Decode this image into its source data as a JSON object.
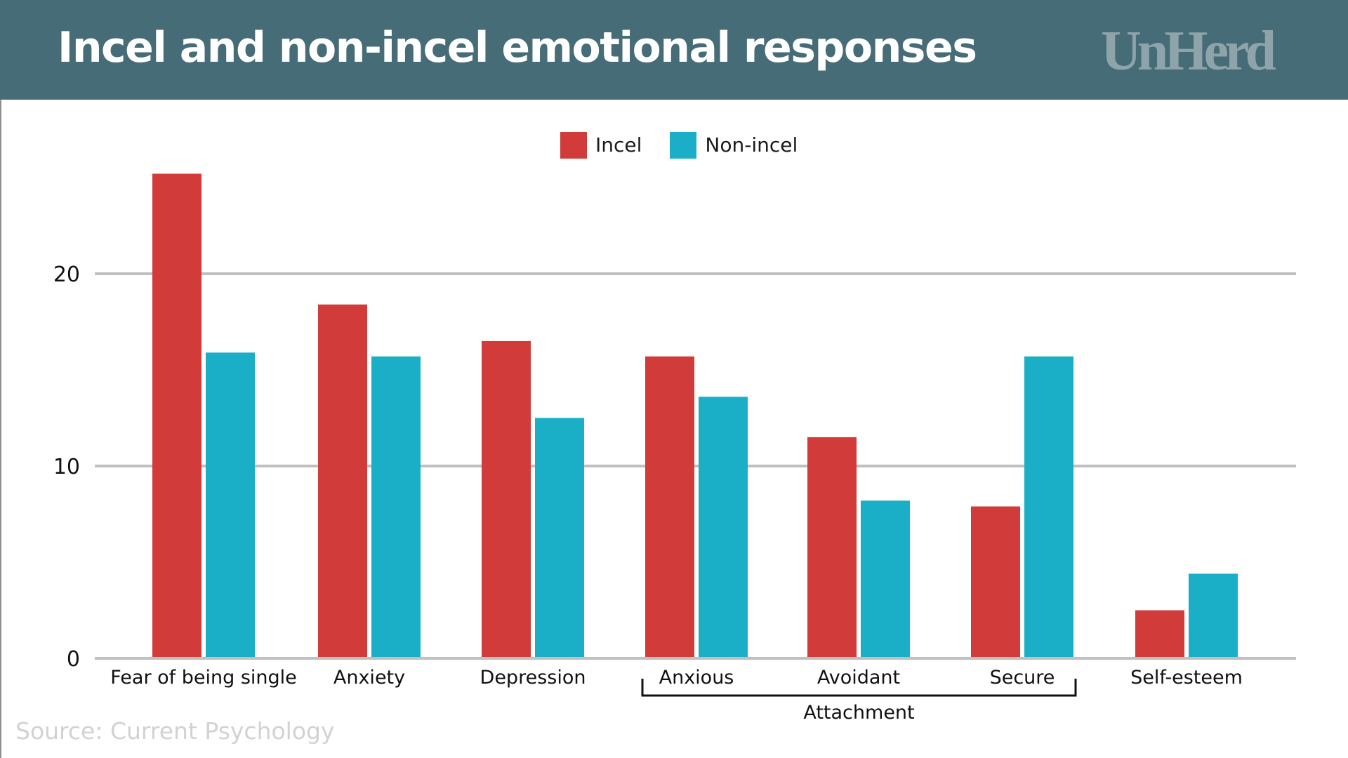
{
  "header": {
    "title": "Incel and non-incel emotional responses",
    "brand": "UnHerd",
    "background_color": "#466c77"
  },
  "source": "Source: Current Psychology",
  "chart_data": {
    "type": "bar",
    "title": "Incel and non-incel emotional responses",
    "xlabel": "",
    "ylabel": "",
    "categories": [
      "Fear of being single",
      "Anxiety",
      "Depression",
      "Anxious",
      "Avoidant",
      "Secure",
      "Self-esteem"
    ],
    "series": [
      {
        "name": "Incel",
        "color": "#d13c3a",
        "values": [
          25.2,
          18.4,
          16.5,
          15.7,
          11.5,
          7.9,
          2.5
        ]
      },
      {
        "name": "Non-incel",
        "color": "#1aafc6",
        "values": [
          15.9,
          15.7,
          12.5,
          13.6,
          8.2,
          15.7,
          4.4
        ]
      }
    ],
    "ylim": [
      0,
      27
    ],
    "yticks": [
      0,
      10,
      20
    ],
    "grid": true,
    "legend": "top-center",
    "category_groups": [
      {
        "label": "Attachment",
        "categories": [
          "Anxious",
          "Avoidant",
          "Secure"
        ]
      }
    ]
  }
}
